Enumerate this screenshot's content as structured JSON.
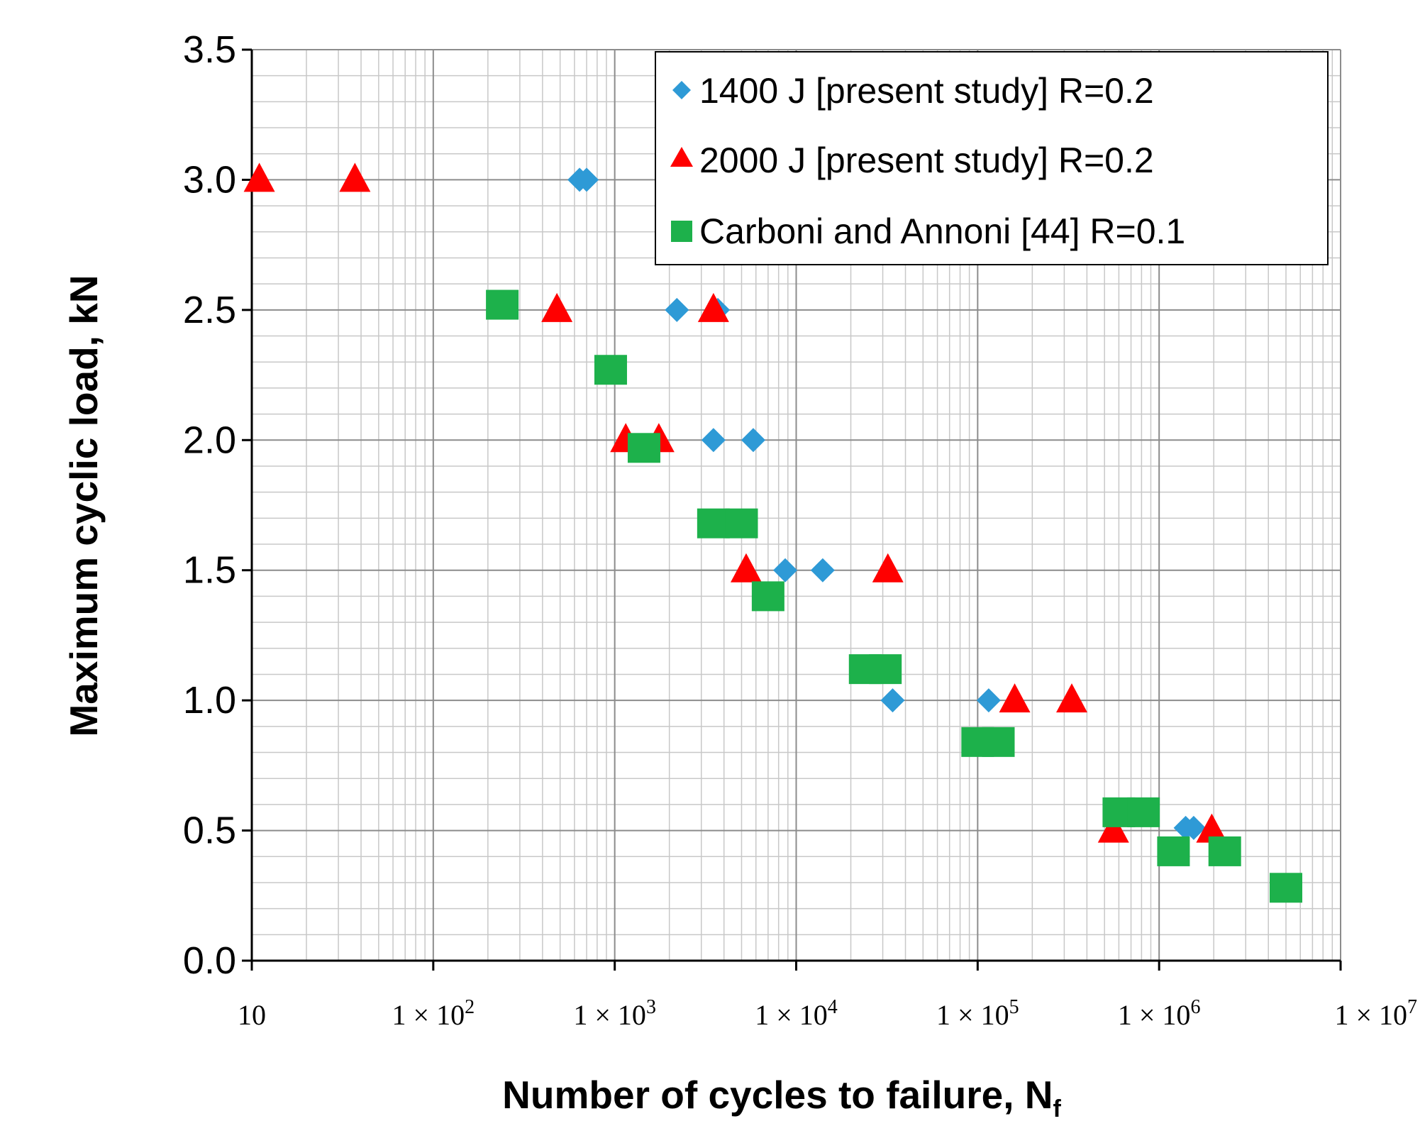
{
  "chart_data": {
    "type": "scatter",
    "title": "",
    "xlabel": "Number of cycles to failure, N",
    "xlabel_sub": "f",
    "ylabel": "Maximum cyclic load, kN",
    "xscale": "log",
    "xlim": [
      10,
      10000000
    ],
    "ylim": [
      0,
      3.5
    ],
    "grid": true,
    "legend_position": "top-right",
    "x_ticks": [
      {
        "value": 10,
        "label": "10",
        "exp": ""
      },
      {
        "value": 100,
        "label": "1 × 10",
        "exp": "2"
      },
      {
        "value": 1000,
        "label": "1 × 10",
        "exp": "3"
      },
      {
        "value": 10000,
        "label": "1 × 10",
        "exp": "4"
      },
      {
        "value": 100000,
        "label": "1 × 10",
        "exp": "5"
      },
      {
        "value": 1000000,
        "label": "1 × 10",
        "exp": "6"
      },
      {
        "value": 10000000,
        "label": "1 × 10",
        "exp": "7"
      }
    ],
    "y_ticks": [
      {
        "value": 0,
        "label": "0.0"
      },
      {
        "value": 0.5,
        "label": "0.5"
      },
      {
        "value": 1.0,
        "label": "1.0"
      },
      {
        "value": 1.5,
        "label": "1.5"
      },
      {
        "value": 2.0,
        "label": "2.0"
      },
      {
        "value": 2.5,
        "label": "2.5"
      },
      {
        "value": 3.0,
        "label": "3.0"
      },
      {
        "value": 3.5,
        "label": "3.5"
      }
    ],
    "series": [
      {
        "name": "1400 J [present study] R=0.2",
        "marker": "diamond",
        "color": "#2E9AD6",
        "points": [
          [
            640,
            3.0
          ],
          [
            700,
            3.0
          ],
          [
            2200,
            2.5
          ],
          [
            3700,
            2.5
          ],
          [
            3500,
            2.0
          ],
          [
            5800,
            2.0
          ],
          [
            8700,
            1.5
          ],
          [
            14000,
            1.5
          ],
          [
            34000,
            1.0
          ],
          [
            115000,
            1.0
          ],
          [
            1400000,
            0.51
          ],
          [
            1550000,
            0.51
          ]
        ]
      },
      {
        "name": "2000 J [present study] R=0.2",
        "marker": "triangle",
        "color": "#FF0000",
        "points": [
          [
            11,
            3.0
          ],
          [
            37,
            3.0
          ],
          [
            480,
            2.5
          ],
          [
            3500,
            2.5
          ],
          [
            1150,
            2.0
          ],
          [
            1750,
            2.0
          ],
          [
            5300,
            1.5
          ],
          [
            32000,
            1.5
          ],
          [
            160000,
            1.0
          ],
          [
            330000,
            1.0
          ],
          [
            560000,
            0.5
          ],
          [
            1950000,
            0.5
          ]
        ]
      },
      {
        "name": "Carboni and Annoni [44] R=0.1",
        "marker": "square",
        "color": "#1DB14B",
        "points": [
          [
            240,
            2.52
          ],
          [
            950,
            2.27
          ],
          [
            1450,
            1.97
          ],
          [
            3500,
            1.68
          ],
          [
            5000,
            1.68
          ],
          [
            7000,
            1.4
          ],
          [
            24000,
            1.12
          ],
          [
            31000,
            1.12
          ],
          [
            100000,
            0.84
          ],
          [
            130000,
            0.84
          ],
          [
            600000,
            0.57
          ],
          [
            820000,
            0.57
          ],
          [
            1200000,
            0.42
          ],
          [
            2300000,
            0.42
          ],
          [
            5000000,
            0.28
          ]
        ]
      }
    ]
  }
}
